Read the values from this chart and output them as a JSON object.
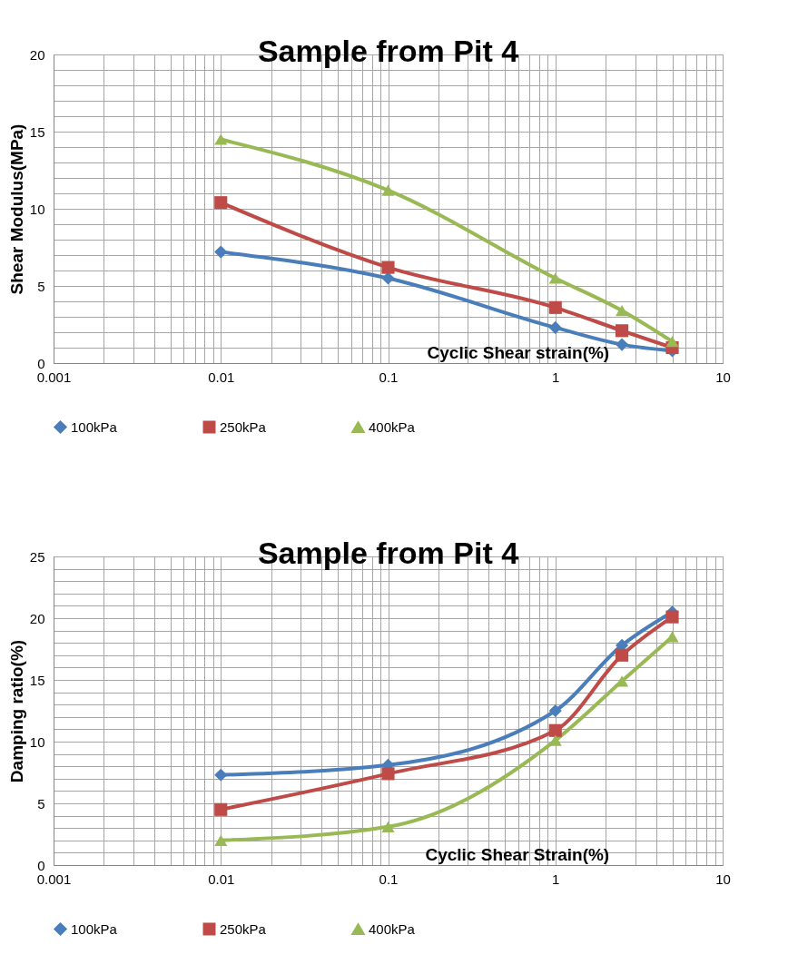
{
  "chart_data": [
    {
      "type": "line",
      "title": "Sample from Pit 4",
      "xlabel": "Cyclic Shear strain(%)",
      "ylabel": "Shear Modulus(MPa)",
      "log": "x",
      "x": [
        0.01,
        0.1,
        1,
        2.5,
        5
      ],
      "xlim": [
        0.001,
        10
      ],
      "xticks": [
        0.001,
        0.01,
        0.1,
        1,
        10
      ],
      "ylim": [
        0,
        20
      ],
      "yticks": [
        0,
        5,
        10,
        15,
        20
      ],
      "grid": true,
      "legend": "bottom",
      "line_style": "solid",
      "series": [
        {
          "name": "100kPa",
          "color": "#4a7ebb",
          "marker": "diamond",
          "values": [
            7.2,
            5.5,
            2.3,
            1.2,
            0.8
          ]
        },
        {
          "name": "250kPa",
          "color": "#be4b48",
          "marker": "square",
          "values": [
            10.4,
            6.2,
            3.6,
            2.1,
            1.0
          ]
        },
        {
          "name": "400kPa",
          "color": "#98b954",
          "marker": "triangle",
          "values": [
            14.5,
            11.2,
            5.5,
            3.4,
            1.4
          ]
        }
      ]
    },
    {
      "type": "line",
      "title": "Sample from Pit 4",
      "xlabel": "Cyclic Shear Strain(%)",
      "ylabel": "Damping ratio(%)",
      "log": "x",
      "x": [
        0.01,
        0.1,
        1,
        2.5,
        5
      ],
      "xlim": [
        0.001,
        10
      ],
      "xticks": [
        0.001,
        0.01,
        0.1,
        1,
        10
      ],
      "ylim": [
        0,
        25
      ],
      "yticks": [
        0,
        5,
        10,
        15,
        20,
        25
      ],
      "grid": true,
      "legend": "bottom",
      "line_style": "solid",
      "series": [
        {
          "name": "100kPa",
          "color": "#4a7ebb",
          "marker": "diamond",
          "values": [
            7.3,
            8.1,
            12.5,
            17.8,
            20.5
          ]
        },
        {
          "name": "250kPa",
          "color": "#be4b48",
          "marker": "square",
          "values": [
            4.5,
            7.4,
            10.9,
            17.0,
            20.1
          ]
        },
        {
          "name": "400kPa",
          "color": "#98b954",
          "marker": "triangle",
          "values": [
            2.0,
            3.1,
            10.1,
            14.9,
            18.5
          ]
        }
      ]
    }
  ]
}
